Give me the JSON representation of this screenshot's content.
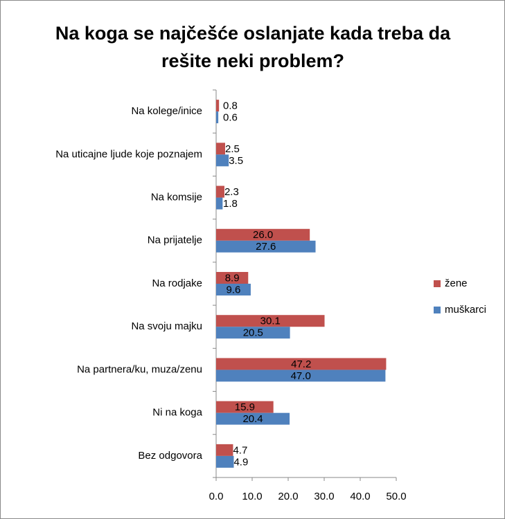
{
  "chart_data": {
    "type": "hbar",
    "title": "Na koga se najčešće oslanjate kada treba da rešite neki problem?",
    "categories": [
      "Na kolege/inice",
      "Na uticajne ljude koje poznajem",
      "Na komsije",
      "Na prijatelje",
      "Na rodjake",
      "Na  svoju majku",
      "Na partnera/ku, muza/zenu",
      "Ni na koga",
      "Bez odgovora"
    ],
    "series": [
      {
        "name": "žene",
        "color": "#c0504d",
        "values": [
          0.8,
          2.5,
          2.3,
          26,
          8.9,
          30.1,
          47.2,
          15.9,
          4.7
        ],
        "value_labels": [
          "0.8",
          "2.5",
          "2.3",
          "26.0",
          "8.9",
          "30.1",
          "47.2",
          "15.9",
          "4.7"
        ]
      },
      {
        "name": "muškarci",
        "color": "#4f81bd",
        "values": [
          0.6,
          3.5,
          1.8,
          27.6,
          9.6,
          20.5,
          47,
          20.4,
          4.9
        ],
        "value_labels": [
          "0.6",
          "3.5",
          "1.8",
          "27.6",
          "9.6",
          "20.5",
          "47.0",
          "20.4",
          "4.9"
        ]
      }
    ],
    "xlim": [
      0,
      50
    ],
    "xticks": [
      {
        "value": 0,
        "label": "0.0"
      },
      {
        "value": 10,
        "label": "10.0"
      },
      {
        "value": 20,
        "label": "20.0"
      },
      {
        "value": 30,
        "label": "30.0"
      },
      {
        "value": 40,
        "label": "40.0"
      },
      {
        "value": 50,
        "label": "50.0"
      }
    ],
    "legend": "right"
  }
}
